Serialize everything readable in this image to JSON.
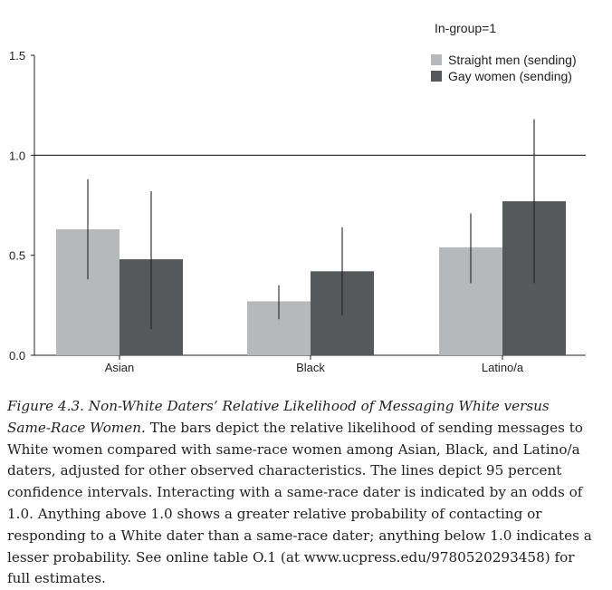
{
  "chart_data": {
    "type": "bar",
    "categories": [
      "Asian",
      "Black",
      "Latino/a"
    ],
    "legend_title": "In-group=1",
    "legend_position": "top-right",
    "series": [
      {
        "name": "Straight men (sending)",
        "color": "#b7b8ba",
        "values": [
          0.63,
          0.27,
          0.54
        ],
        "ci_low": [
          0.38,
          0.18,
          0.36
        ],
        "ci_high": [
          0.88,
          0.35,
          0.71
        ]
      },
      {
        "name": "Gay women (sending)",
        "color": "#57585a",
        "values": [
          0.48,
          0.42,
          0.77
        ],
        "ci_low": [
          0.13,
          0.2,
          0.36
        ],
        "ci_high": [
          0.82,
          0.64,
          1.18
        ]
      }
    ],
    "ylim": [
      0,
      1.5
    ],
    "yticks": [
      "0.0",
      "0.5",
      "1.0",
      "1.5"
    ],
    "ytick_values": [
      0,
      0.5,
      1.0,
      1.5
    ],
    "reference_line": 1.0,
    "xlabel": "",
    "ylabel": ""
  },
  "caption": {
    "figure_title": "Figure 4.3.  Non-White Daters’ Relative Likelihood of Messaging White versus Same-Race Women.",
    "body": " The bars depict the relative likelihood of sending messages to White women compared with same-race women among Asian, Black, and Latino/a daters, adjusted for other observed characteristics. The lines depict 95 percent confidence intervals. Interacting with a same-race dater is indicated by an odds of 1.0. Anything above 1.0 shows a greater relative probability of contacting or responding to a White dater than a same-race dater; anything below 1.0 indicates a lesser probability. See online table O.1 (at www.ucpress.edu/9780520293458) for full estimates."
  }
}
